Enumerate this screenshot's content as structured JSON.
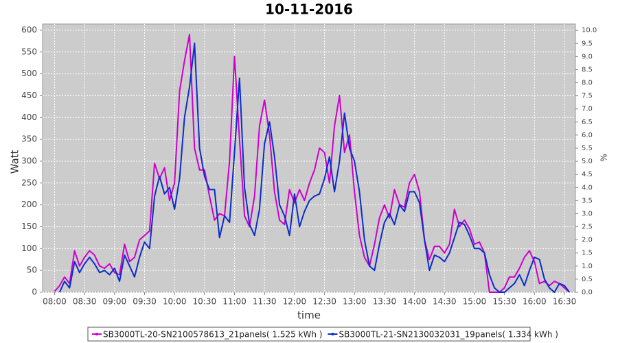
{
  "chart_data": {
    "type": "line",
    "title": "10-11-2016",
    "xlabel": "time",
    "ylabel": "Watt",
    "y2label": "%",
    "x": [
      "08:00",
      "08:05",
      "08:10",
      "08:15",
      "08:20",
      "08:25",
      "08:30",
      "08:35",
      "08:40",
      "08:45",
      "08:50",
      "08:55",
      "09:00",
      "09:05",
      "09:10",
      "09:15",
      "09:20",
      "09:25",
      "09:30",
      "09:35",
      "09:40",
      "09:45",
      "09:50",
      "09:55",
      "10:00",
      "10:05",
      "10:10",
      "10:15",
      "10:20",
      "10:25",
      "10:30",
      "10:35",
      "10:40",
      "10:45",
      "10:50",
      "10:55",
      "11:00",
      "11:05",
      "11:10",
      "11:15",
      "11:20",
      "11:25",
      "11:30",
      "11:35",
      "11:40",
      "11:45",
      "11:50",
      "11:55",
      "12:00",
      "12:05",
      "12:10",
      "12:15",
      "12:20",
      "12:25",
      "12:30",
      "12:35",
      "12:40",
      "12:45",
      "12:50",
      "12:55",
      "13:00",
      "13:05",
      "13:10",
      "13:15",
      "13:20",
      "13:25",
      "13:30",
      "13:35",
      "13:40",
      "13:45",
      "13:50",
      "13:55",
      "14:00",
      "14:05",
      "14:10",
      "14:15",
      "14:20",
      "14:25",
      "14:30",
      "14:35",
      "14:40",
      "14:45",
      "14:50",
      "14:55",
      "15:00",
      "15:05",
      "15:10",
      "15:15",
      "15:20",
      "15:25",
      "15:30",
      "15:35",
      "15:40",
      "15:45",
      "15:50",
      "15:55",
      "16:00",
      "16:05",
      "16:10",
      "16:15",
      "16:20",
      "16:25",
      "16:30",
      "16:35"
    ],
    "series": [
      {
        "name": "SB3000TL-20-SN2100578613_21panels( 1.525 kWh )",
        "color": "#cc00cc",
        "values": [
          2,
          15,
          35,
          20,
          95,
          60,
          80,
          95,
          85,
          60,
          55,
          65,
          45,
          40,
          110,
          70,
          80,
          120,
          130,
          140,
          295,
          260,
          285,
          210,
          250,
          460,
          530,
          590,
          330,
          280,
          280,
          220,
          165,
          180,
          175,
          300,
          540,
          350,
          175,
          150,
          220,
          380,
          440,
          360,
          230,
          165,
          155,
          235,
          205,
          235,
          210,
          250,
          280,
          330,
          320,
          250,
          380,
          450,
          320,
          360,
          230,
          130,
          80,
          60,
          110,
          170,
          200,
          170,
          235,
          200,
          195,
          250,
          270,
          230,
          120,
          75,
          105,
          105,
          90,
          110,
          190,
          150,
          165,
          145,
          110,
          115,
          90,
          0,
          0,
          0,
          10,
          35,
          35,
          55,
          80,
          95,
          70,
          20,
          25,
          15,
          25,
          20,
          10,
          0
        ]
      },
      {
        "name": "SB3000TL-21-SN2130032031_19panels( 1.334 kWh )",
        "color": "#0a2ccc",
        "values": [
          null,
          0,
          25,
          10,
          70,
          45,
          65,
          80,
          65,
          45,
          50,
          40,
          55,
          25,
          85,
          60,
          35,
          80,
          115,
          100,
          220,
          265,
          225,
          240,
          190,
          260,
          400,
          470,
          570,
          330,
          265,
          235,
          235,
          125,
          175,
          160,
          320,
          490,
          240,
          155,
          130,
          190,
          340,
          390,
          310,
          200,
          175,
          130,
          225,
          150,
          185,
          210,
          220,
          225,
          260,
          310,
          230,
          300,
          410,
          330,
          300,
          230,
          120,
          60,
          50,
          110,
          160,
          180,
          155,
          200,
          185,
          230,
          230,
          205,
          120,
          50,
          85,
          80,
          70,
          90,
          125,
          160,
          155,
          130,
          100,
          100,
          90,
          40,
          10,
          0,
          0,
          10,
          20,
          40,
          15,
          50,
          80,
          75,
          30,
          10,
          0,
          20,
          15,
          0
        ]
      }
    ],
    "xlim": [
      "07:48",
      "16:41"
    ],
    "xticks": [
      "08:00",
      "08:30",
      "09:00",
      "09:30",
      "10:00",
      "10:30",
      "11:00",
      "11:30",
      "12:00",
      "12:30",
      "13:00",
      "13:30",
      "14:00",
      "14:30",
      "15:00",
      "15:30",
      "16:00",
      "16:30"
    ],
    "ylim": [
      0,
      614
    ],
    "yticks": [
      0,
      50,
      100,
      150,
      200,
      250,
      300,
      350,
      400,
      450,
      500,
      550,
      600
    ],
    "y2lim": [
      0,
      10.24
    ],
    "y2ticks": [
      {
        "value": 0,
        "label": "0.0"
      },
      0.5,
      {
        "value": 1,
        "label": "1.0"
      },
      1.5,
      {
        "value": 2,
        "label": "2.0"
      },
      2.5,
      {
        "value": 3,
        "label": "3.0"
      },
      3.5,
      {
        "value": 4,
        "label": "4.0"
      },
      4.5,
      {
        "value": 5,
        "label": "5.0"
      },
      5.5,
      {
        "value": 6,
        "label": "6.0"
      },
      6.5,
      {
        "value": 7,
        "label": "7.0"
      },
      7.5,
      {
        "value": 8,
        "label": "8.0"
      },
      8.5,
      {
        "value": 9,
        "label": "9.0"
      },
      9.5,
      {
        "value": 10,
        "label": "10.0"
      }
    ],
    "grid": true,
    "legend": "bottom"
  }
}
